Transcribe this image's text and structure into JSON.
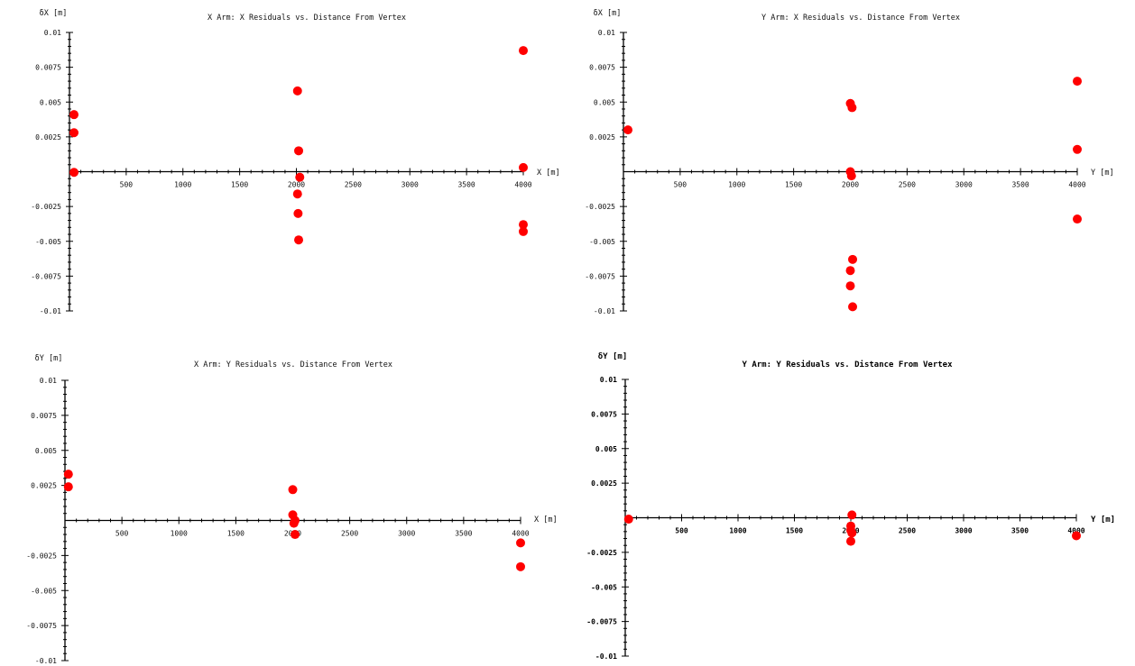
{
  "chart_data": [
    {
      "type": "scatter",
      "title": "X Arm: X Residuals vs. Distance From Vertex",
      "xlabel": "X [m]",
      "ylabel": "δX [m]",
      "xlim": [
        0,
        4000
      ],
      "ylim": [
        -0.01,
        0.01
      ],
      "x_ticks": [
        500,
        1000,
        1500,
        2000,
        2500,
        3000,
        3500,
        4000
      ],
      "x_tick_labels": [
        "500",
        "1000",
        "1500",
        "2000",
        "2500",
        "3000",
        "3500",
        "4000"
      ],
      "y_ticks": [
        0.01,
        0.0075,
        0.005,
        0.0025,
        -0.0025,
        -0.005,
        -0.0075,
        -0.01
      ],
      "y_tick_labels": [
        "0.01",
        "0.0075",
        "0.005",
        "0.0025",
        "-0.0025",
        "-0.005",
        "-0.0075",
        "-0.01"
      ],
      "series": [
        {
          "color": "#ff0000",
          "x": [
            40,
            40,
            40,
            2010,
            2020,
            2010,
            2030,
            2015,
            2020,
            4000,
            4000,
            4000,
            4000
          ],
          "y": [
            0.0041,
            0.0028,
            -5e-05,
            0.0058,
            0.0015,
            -0.0016,
            -0.0004,
            -0.003,
            -0.0049,
            0.0087,
            0.0003,
            -0.0038,
            -0.0043
          ]
        }
      ]
    },
    {
      "type": "scatter",
      "title": "Y Arm: X Residuals vs. Distance From Vertex",
      "xlabel": "Y [m]",
      "ylabel": "δX [m]",
      "xlim": [
        0,
        4000
      ],
      "ylim": [
        -0.01,
        0.01
      ],
      "x_ticks": [
        500,
        1000,
        1500,
        2000,
        2500,
        3000,
        3500,
        4000
      ],
      "x_tick_labels": [
        "500",
        "1000",
        "1500",
        "2000",
        "2500",
        "3000",
        "3500",
        "4000"
      ],
      "y_ticks": [
        0.01,
        0.0075,
        0.005,
        0.0025,
        -0.0025,
        -0.005,
        -0.0075,
        -0.01
      ],
      "y_tick_labels": [
        "0.01",
        "0.0075",
        "0.005",
        "0.0025",
        "-0.0025",
        "-0.005",
        "-0.0075",
        "-0.01"
      ],
      "series": [
        {
          "color": "#ff0000",
          "x": [
            40,
            2000,
            2015,
            2000,
            2010,
            2020,
            2000,
            2000,
            2020,
            4000,
            4000,
            4000
          ],
          "y": [
            0.003,
            0.0049,
            0.0046,
            0.0,
            -0.0003,
            -0.0063,
            -0.0071,
            -0.0082,
            -0.0097,
            0.0065,
            0.0016,
            -0.0034
          ]
        }
      ]
    },
    {
      "type": "scatter",
      "title": "X Arm: Y Residuals vs. Distance From Vertex",
      "xlabel": "X [m]",
      "ylabel": "δY [m]",
      "xlim": [
        0,
        4000
      ],
      "ylim": [
        -0.01,
        0.01
      ],
      "x_ticks": [
        500,
        1000,
        1500,
        2000,
        2500,
        3000,
        3500,
        4000
      ],
      "x_tick_labels": [
        "500",
        "1000",
        "1500",
        "2000",
        "2500",
        "3000",
        "3500",
        "4000"
      ],
      "y_ticks": [
        0.01,
        0.0075,
        0.005,
        0.0025,
        -0.0025,
        -0.005,
        -0.0075,
        -0.01
      ],
      "y_tick_labels": [
        "0.01",
        "0.0075",
        "0.005",
        "0.0025",
        "-0.0025",
        "-0.005",
        "-0.0075",
        "-0.01"
      ],
      "series": [
        {
          "color": "#ff0000",
          "x": [
            30,
            30,
            2000,
            2000,
            2020,
            2010,
            2020,
            4000,
            4000
          ],
          "y": [
            0.0033,
            0.0024,
            0.0022,
            0.0004,
            0.0,
            -0.0002,
            -0.001,
            -0.0016,
            -0.0033
          ]
        }
      ]
    },
    {
      "type": "scatter",
      "title": "Y Arm: Y Residuals vs. Distance From Vertex",
      "xlabel": "Y [m]",
      "ylabel": "δY [m]",
      "xlim": [
        0,
        4000
      ],
      "ylim": [
        -0.01,
        0.01
      ],
      "x_ticks": [
        500,
        1000,
        1500,
        2000,
        2500,
        3000,
        3500,
        4000
      ],
      "x_tick_labels": [
        "500",
        "1000",
        "1500",
        "2000",
        "2500",
        "3000",
        "3500",
        "4000"
      ],
      "y_ticks": [
        0.01,
        0.0075,
        0.005,
        0.0025,
        -0.0025,
        -0.005,
        -0.0075,
        -0.01
      ],
      "y_tick_labels": [
        "0.01",
        "0.0075",
        "0.005",
        "0.0025",
        "-0.0025",
        "-0.005",
        "-0.0075",
        "-0.01"
      ],
      "series": [
        {
          "color": "#ff0000",
          "x": [
            30,
            2010,
            2000,
            2000,
            2010,
            2000,
            4000
          ],
          "y": [
            -0.0001,
            0.0002,
            -0.0006,
            -0.0009,
            -0.0011,
            -0.0017,
            -0.0013
          ]
        }
      ]
    }
  ]
}
